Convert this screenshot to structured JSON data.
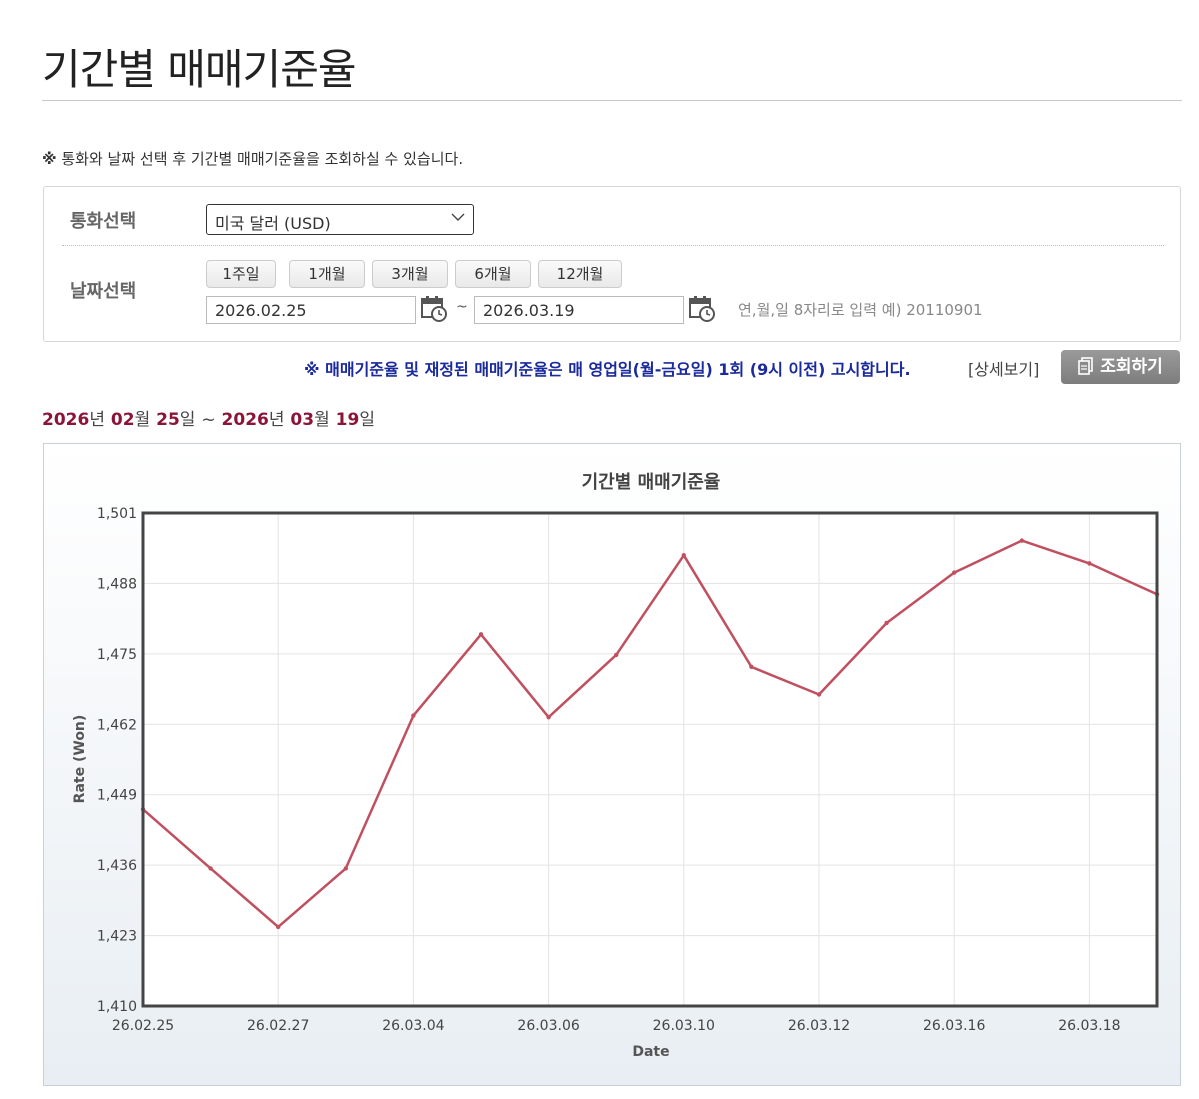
{
  "page": {
    "title": "기간별 매매기준율",
    "notice_mark": "※",
    "notice": "통화와 날짜 선택 후 기간별 매매기준율을 조회하실 수 있습니다."
  },
  "search": {
    "currency_label": "통화선택",
    "currency_value": "미국 달러 (USD)",
    "date_label": "날짜선택",
    "period_buttons": [
      "1주일",
      "1개월",
      "3개월",
      "6개월",
      "12개월"
    ],
    "start_date": "2026.02.25",
    "end_date": "2026.03.19",
    "tilde": "~",
    "hint": "연,월,일 8자리로 입력 예) 20110901"
  },
  "announce": "※ 매매기준율 및 재정된 매매기준율은 매 영업일(월-금요일) 1회 (9시 이전) 고시합니다.",
  "detail_link": "[상세보기]",
  "query_button": "조회하기",
  "range": {
    "y1": "2026",
    "u_year1": "년",
    "m1": "02",
    "u_month1": "월",
    "d1": "25",
    "u_day1": "일",
    "sep": "~",
    "y2": "2026",
    "u_year2": "년",
    "m2": "03",
    "u_month2": "월",
    "d2": "19",
    "u_day2": "일"
  },
  "colors": {
    "line": "#c0505f",
    "range_accent": "#8a1538",
    "announce": "#1a2a9c"
  },
  "chart_data": {
    "type": "line",
    "title": "기간별 매매기준율",
    "xlabel": "Date",
    "ylabel": "Rate (Won)",
    "ylim": [
      1410,
      1501
    ],
    "y_ticks": [
      "1,410",
      "1,423",
      "1,436",
      "1,449",
      "1,462",
      "1,475",
      "1,488",
      "1,501"
    ],
    "grid": true,
    "x": [
      "26.02.25",
      "26.02.26",
      "26.02.27",
      "26.03.03",
      "26.03.04",
      "26.03.05",
      "26.03.06",
      "26.03.09",
      "26.03.10",
      "26.03.11",
      "26.03.12",
      "26.03.13",
      "26.03.16",
      "26.03.17",
      "26.03.18",
      "26.03.19"
    ],
    "x_tick_labels": [
      "26.02.25",
      "26.02.27",
      "26.03.04",
      "26.03.06",
      "26.03.10",
      "26.03.12",
      "26.03.16",
      "26.03.18"
    ],
    "series": [
      {
        "values": [
          1446.3,
          1435.4,
          1424.6,
          1435.4,
          1463.6,
          1478.6,
          1463.3,
          1474.8,
          1493.2,
          1472.6,
          1467.5,
          1480.7,
          1490.0,
          1495.9,
          1491.7,
          1486.0
        ]
      }
    ]
  }
}
